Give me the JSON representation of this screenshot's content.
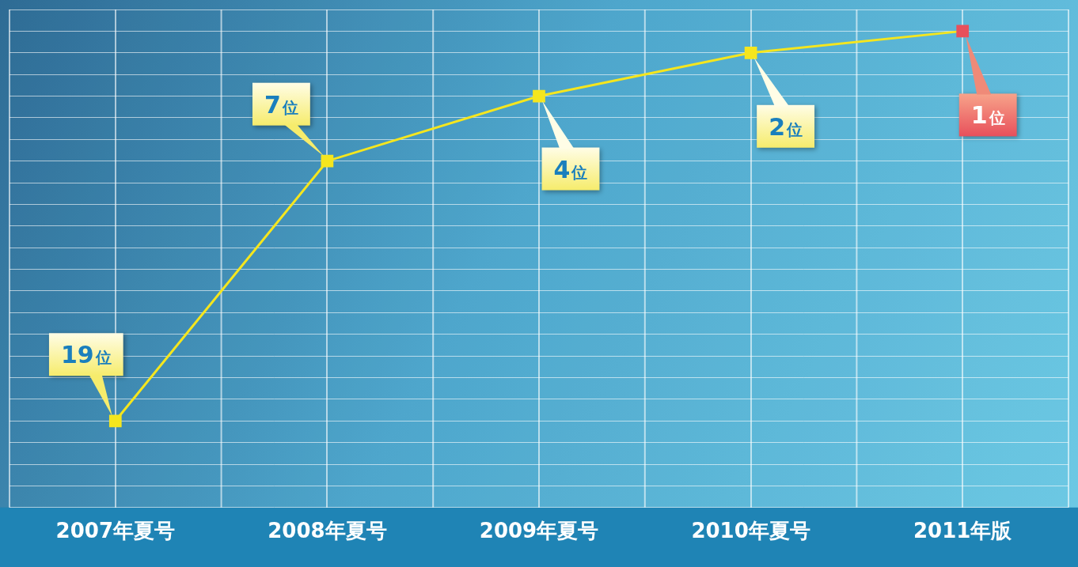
{
  "chart_data": {
    "type": "line",
    "categories": [
      "2007年夏号",
      "2008年夏号",
      "2009年夏号",
      "2010年夏号",
      "2011年版"
    ],
    "values": [
      19,
      7,
      4,
      2,
      1
    ],
    "value_labels": [
      "19位",
      "7位",
      "4位",
      "2位",
      "1位"
    ],
    "data_labels": true,
    "color": "#f5e61e",
    "colors": [
      "#f5e61e",
      "#f5e61e",
      "#f5e61e",
      "#f5e61e",
      "#e8505b"
    ],
    "marker": "square",
    "ylim": [
      23,
      0
    ],
    "yticks": [
      0,
      1,
      2,
      3,
      4,
      5,
      6,
      7,
      8,
      9,
      10,
      11,
      12,
      13,
      14,
      15,
      16,
      17,
      18,
      19,
      20,
      21,
      22,
      23
    ],
    "grid": true,
    "tick_labels": "x"
  }
}
